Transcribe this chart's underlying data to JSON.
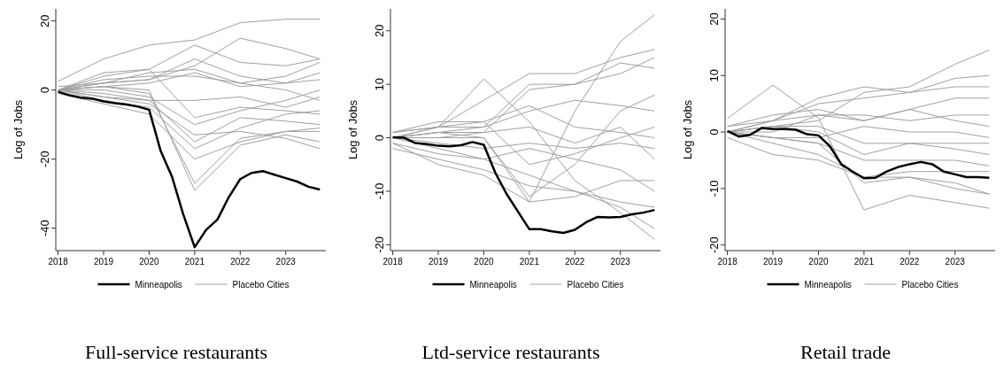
{
  "chart_data": [
    {
      "type": "line",
      "title": "Full-service restaurants",
      "ylabel": "Log of Jobs",
      "legend": "bottom",
      "xlim": [
        2017.95,
        2023.88
      ],
      "xticks": [
        2018,
        2019,
        2020,
        2021,
        2022,
        2023
      ],
      "ylim": [
        -46.5,
        23.5
      ],
      "yticks": [
        -40,
        -20,
        0,
        20
      ],
      "x": [
        2018,
        2019,
        2020,
        2021,
        2022,
        2023,
        2023.75
      ],
      "series": [
        {
          "name": "Placebo Cities",
          "color": "#a0a0a0",
          "values": [
            2.5,
            9,
            13,
            14.5,
            19.5,
            20.5,
            20.5
          ]
        },
        {
          "color": "#a0a0a0",
          "values": [
            0,
            5,
            6,
            13,
            8,
            7,
            9
          ]
        },
        {
          "color": "#a0a0a0",
          "values": [
            0,
            4,
            6,
            -8,
            -5,
            -6,
            -7
          ]
        },
        {
          "color": "#a0a0a0",
          "values": [
            0,
            1,
            -1,
            -27,
            -14,
            -12,
            -11
          ]
        },
        {
          "color": "#a0a0a0",
          "values": [
            0,
            1,
            0,
            -29,
            -16,
            -13,
            -15
          ]
        },
        {
          "color": "#a0a0a0",
          "values": [
            0,
            -3,
            -5,
            -17,
            -11,
            -7,
            -6
          ]
        },
        {
          "color": "#a0a0a0",
          "values": [
            0,
            2,
            3,
            7,
            15,
            12,
            9
          ]
        },
        {
          "color": "#a0a0a0",
          "values": [
            0,
            -2,
            -4,
            -13,
            -12,
            -14,
            -17
          ]
        },
        {
          "color": "#a0a0a0",
          "values": [
            0,
            1,
            2,
            5,
            1,
            2,
            3
          ]
        },
        {
          "color": "#a0a0a0",
          "values": [
            -1,
            -4,
            -7,
            -20,
            -15,
            -12,
            -12
          ]
        },
        {
          "color": "#a0a0a0",
          "values": [
            0,
            2,
            5,
            6,
            2,
            0,
            -3
          ]
        },
        {
          "color": "#a0a0a0",
          "values": [
            0,
            0,
            -2,
            -10,
            -6,
            -3,
            0
          ]
        },
        {
          "color": "#a0a0a0",
          "values": [
            0,
            3,
            4,
            4,
            2,
            4,
            8
          ]
        },
        {
          "color": "#a0a0a0",
          "values": [
            0,
            -1,
            -3,
            -15,
            -8,
            -9,
            -10
          ]
        },
        {
          "color": "#a0a0a0",
          "values": [
            1,
            2,
            3,
            9,
            4,
            2,
            5
          ]
        },
        {
          "color": "#a0a0a0",
          "values": [
            0,
            -2,
            -3,
            -3,
            -2,
            -5,
            -2
          ]
        },
        {
          "name": "Minneapolis",
          "color": "#000000",
          "x": [
            2018,
            2018.25,
            2018.5,
            2018.75,
            2019,
            2019.25,
            2019.5,
            2019.75,
            2020,
            2020.25,
            2020.5,
            2020.75,
            2021,
            2021.25,
            2021.5,
            2021.75,
            2022,
            2022.25,
            2022.5,
            2022.75,
            2023,
            2023.25,
            2023.5,
            2023.75
          ],
          "values": [
            -0.5,
            -1.5,
            -2.2,
            -2.5,
            -3.3,
            -3.8,
            -4.2,
            -4.8,
            -5.7,
            -17.5,
            -25,
            -36,
            -45.5,
            -40.5,
            -37.5,
            -31,
            -25.8,
            -24,
            -23.5,
            -24.5,
            -25.5,
            -26.5,
            -28,
            -28.8
          ]
        }
      ]
    },
    {
      "type": "line",
      "title": "Ltd-service restaurants",
      "ylabel": "Log of Jobs",
      "legend": "bottom",
      "xlim": [
        2017.95,
        2023.88
      ],
      "xticks": [
        2018,
        2019,
        2020,
        2021,
        2022,
        2023
      ],
      "ylim": [
        -21.1,
        24.1
      ],
      "yticks": [
        -20,
        -10,
        0,
        10,
        20
      ],
      "x": [
        2018,
        2019,
        2020,
        2021,
        2022,
        2023,
        2023.75
      ],
      "series": [
        {
          "name": "Placebo Cities",
          "color": "#a0a0a0",
          "values": [
            0,
            0,
            0,
            -12,
            5,
            18,
            23
          ]
        },
        {
          "color": "#a0a0a0",
          "values": [
            1,
            2,
            7,
            12,
            12,
            15,
            16.5
          ]
        },
        {
          "color": "#a0a0a0",
          "values": [
            0,
            1,
            2,
            10,
            10,
            14,
            13
          ]
        },
        {
          "color": "#a0a0a0",
          "values": [
            -1,
            -5,
            -7,
            -12,
            -11,
            -8,
            -8
          ]
        },
        {
          "color": "#a0a0a0",
          "values": [
            0,
            2,
            11,
            3,
            -8,
            -14,
            -19
          ]
        },
        {
          "color": "#a0a0a0",
          "values": [
            1,
            3,
            3,
            6,
            2,
            1,
            0
          ]
        },
        {
          "color": "#a0a0a0",
          "values": [
            0,
            -2,
            -4,
            -7,
            -10,
            -13,
            -17
          ]
        },
        {
          "color": "#a0a0a0",
          "values": [
            0,
            1,
            0,
            -11,
            -5,
            5,
            8
          ]
        },
        {
          "color": "#a0a0a0",
          "values": [
            -1,
            -3,
            -4,
            -2,
            -4,
            -6,
            -10
          ]
        },
        {
          "color": "#a0a0a0",
          "values": [
            0,
            2,
            2,
            5,
            7,
            6,
            5
          ]
        },
        {
          "color": "#a0a0a0",
          "values": [
            0,
            -1,
            -2,
            -1,
            -2,
            -1,
            -2
          ]
        },
        {
          "color": "#a0a0a0",
          "values": [
            1,
            2,
            3,
            -5,
            -3,
            0,
            2
          ]
        },
        {
          "color": "#a0a0a0",
          "values": [
            0,
            0,
            1,
            9,
            10,
            12,
            15
          ]
        },
        {
          "color": "#a0a0a0",
          "values": [
            -2,
            -4,
            -6,
            -9,
            -10,
            -12,
            -13
          ]
        },
        {
          "color": "#a0a0a0",
          "values": [
            0,
            1,
            1,
            2,
            -1,
            2,
            -4
          ]
        },
        {
          "name": "Minneapolis",
          "color": "#000000",
          "x": [
            2018,
            2018.25,
            2018.5,
            2018.75,
            2019,
            2019.25,
            2019.5,
            2019.75,
            2020,
            2020.25,
            2020.5,
            2020.75,
            2021,
            2021.25,
            2021.5,
            2021.75,
            2022,
            2022.25,
            2022.5,
            2022.75,
            2023,
            2023.25,
            2023.5,
            2023.75
          ],
          "values": [
            0.1,
            0,
            -1,
            -1.2,
            -1.5,
            -1.6,
            -1.4,
            -0.8,
            -1.3,
            -6.5,
            -10.5,
            -13.8,
            -17.1,
            -17.1,
            -17.5,
            -17.8,
            -17.2,
            -15.8,
            -14.8,
            -14.9,
            -14.8,
            -14.3,
            -14,
            -13.5
          ]
        }
      ]
    },
    {
      "type": "line",
      "title": "Retail trade",
      "ylabel": "Log of Jobs",
      "legend": "bottom",
      "xlim": [
        2017.95,
        2023.88
      ],
      "xticks": [
        2018,
        2019,
        2020,
        2021,
        2022,
        2023
      ],
      "ylim": [
        -21,
        21.8
      ],
      "yticks": [
        -20,
        -10,
        0,
        10,
        20
      ],
      "x": [
        2018,
        2019,
        2020,
        2021,
        2022,
        2023,
        2023.75
      ],
      "series": [
        {
          "name": "Placebo Cities",
          "color": "#a0a0a0",
          "values": [
            2.4,
            8.3,
            2.5,
            -13.8,
            -11.2,
            -12.5,
            -13.5
          ]
        },
        {
          "color": "#a0a0a0",
          "values": [
            0,
            1,
            2,
            7,
            8,
            12,
            14.5
          ]
        },
        {
          "color": "#a0a0a0",
          "values": [
            0,
            2,
            6,
            8,
            7,
            9.5,
            10
          ]
        },
        {
          "color": "#a0a0a0",
          "values": [
            1,
            2,
            5,
            6,
            7,
            8,
            8
          ]
        },
        {
          "color": "#a0a0a0",
          "values": [
            0,
            -1,
            -2,
            -9,
            -8,
            -9,
            -11
          ]
        },
        {
          "color": "#a0a0a0",
          "values": [
            0,
            -2,
            -4,
            -8,
            -7,
            -7,
            -7
          ]
        },
        {
          "color": "#a0a0a0",
          "values": [
            0,
            2,
            3,
            2,
            4,
            6,
            6
          ]
        },
        {
          "color": "#a0a0a0",
          "values": [
            0,
            1,
            0,
            -4,
            -2,
            -3,
            -4
          ]
        },
        {
          "color": "#a0a0a0",
          "values": [
            0,
            -1,
            -1,
            1,
            0,
            0,
            -1
          ]
        },
        {
          "color": "#a0a0a0",
          "values": [
            0,
            0,
            3,
            3,
            2,
            3,
            3
          ]
        },
        {
          "color": "#a0a0a0",
          "values": [
            -1,
            -4,
            -5,
            -8,
            -8,
            -10,
            -11
          ]
        },
        {
          "color": "#a0a0a0",
          "values": [
            0,
            1,
            1,
            -2,
            -2,
            -2,
            -2
          ]
        },
        {
          "color": "#a0a0a0",
          "values": [
            0,
            -1,
            -2,
            -5,
            -5,
            -5,
            -6
          ]
        },
        {
          "color": "#a0a0a0",
          "values": [
            1,
            3,
            4,
            2,
            4,
            2,
            1
          ]
        },
        {
          "name": "Minneapolis",
          "color": "#000000",
          "x": [
            2018,
            2018.25,
            2018.5,
            2018.75,
            2019,
            2019.25,
            2019.5,
            2019.75,
            2020,
            2020.25,
            2020.5,
            2020.75,
            2021,
            2021.25,
            2021.5,
            2021.75,
            2022,
            2022.25,
            2022.5,
            2022.75,
            2023,
            2023.25,
            2023.5,
            2023.75
          ],
          "values": [
            0.2,
            -0.8,
            -0.5,
            0.7,
            0.5,
            0.5,
            0.4,
            -0.4,
            -0.6,
            -2.5,
            -5.7,
            -7,
            -8.2,
            -8.1,
            -7,
            -6.2,
            -5.7,
            -5.3,
            -5.7,
            -7,
            -7.5,
            -8,
            -8,
            -8.1
          ]
        }
      ]
    }
  ]
}
